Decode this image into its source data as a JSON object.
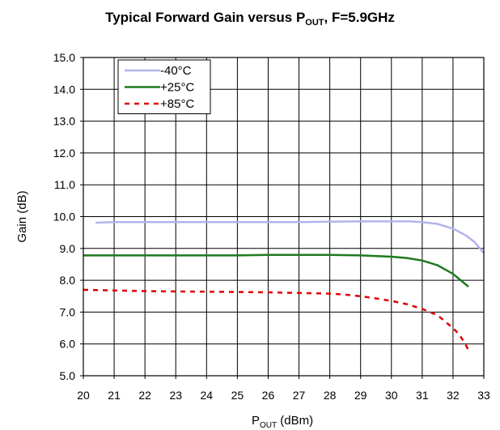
{
  "chart_data": {
    "type": "line",
    "title": {
      "prefix": "Typical Forward Gain versus P",
      "sub": "OUT",
      "suffix": ", F=5.9GHz"
    },
    "xlabel": {
      "prefix": "P",
      "sub": "OUT",
      "suffix": " (dBm)"
    },
    "ylabel": "Gain (dB)",
    "xlim": [
      20,
      33
    ],
    "ylim": [
      5.0,
      15.0
    ],
    "x_ticks": [
      "20",
      "21",
      "22",
      "23",
      "24",
      "25",
      "26",
      "27",
      "28",
      "29",
      "30",
      "31",
      "32",
      "33"
    ],
    "y_ticks": [
      "5.0",
      "6.0",
      "7.0",
      "8.0",
      "9.0",
      "10.0",
      "11.0",
      "12.0",
      "13.0",
      "14.0",
      "15.0"
    ],
    "grid": true,
    "legend_position": "top-left",
    "series": [
      {
        "name": "-40°C",
        "color": "#b3b3ee",
        "style": "solid",
        "x": [
          20.4,
          21.0,
          22.0,
          23.0,
          24.0,
          25.0,
          26.0,
          27.0,
          28.0,
          29.0,
          30.0,
          30.6,
          31.0,
          31.5,
          32.0,
          32.4,
          32.7,
          33.0
        ],
        "y": [
          9.81,
          9.83,
          9.83,
          9.83,
          9.83,
          9.83,
          9.83,
          9.83,
          9.84,
          9.85,
          9.85,
          9.85,
          9.83,
          9.77,
          9.62,
          9.42,
          9.2,
          8.85
        ]
      },
      {
        "name": "+25°C",
        "color": "#1f7a1f",
        "style": "solid",
        "x": [
          20.0,
          21.0,
          22.0,
          23.0,
          24.0,
          25.0,
          26.0,
          27.0,
          28.0,
          29.0,
          30.0,
          30.5,
          31.0,
          31.5,
          32.0,
          32.5
        ],
        "y": [
          8.78,
          8.78,
          8.78,
          8.78,
          8.78,
          8.78,
          8.8,
          8.8,
          8.8,
          8.78,
          8.74,
          8.7,
          8.62,
          8.47,
          8.2,
          7.8
        ]
      },
      {
        "name": "+85°C",
        "color": "#e00000",
        "style": "dashed",
        "x": [
          20.0,
          21.0,
          22.0,
          23.0,
          24.0,
          25.0,
          26.0,
          27.0,
          28.0,
          28.5,
          29.0,
          29.5,
          30.0,
          30.5,
          31.0,
          31.5,
          32.0,
          32.2,
          32.4,
          32.5
        ],
        "y": [
          7.7,
          7.68,
          7.66,
          7.65,
          7.64,
          7.63,
          7.62,
          7.6,
          7.58,
          7.55,
          7.5,
          7.43,
          7.35,
          7.25,
          7.1,
          6.9,
          6.5,
          6.3,
          6.0,
          5.8
        ]
      }
    ]
  }
}
